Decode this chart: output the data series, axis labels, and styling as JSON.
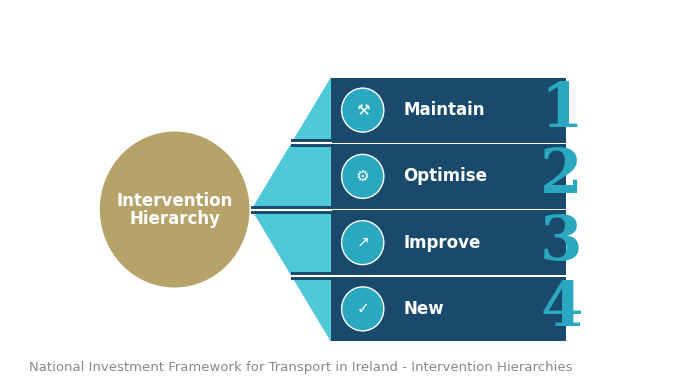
{
  "title": "National Investment Framework for Transport in Ireland - Intervention Hierarchies",
  "circle_text_line1": "Intervention",
  "circle_text_line2": "Hierarchy",
  "circle_color": "#b5a36a",
  "circle_text_color": "#ffffff",
  "dark_blue": "#1a4a6b",
  "teal_blue": "#29a8c0",
  "light_teal": "#4fc8d8",
  "number_color": "#29a8c0",
  "rows": [
    "Maintain",
    "Optimise",
    "Improve",
    "New"
  ],
  "numbers": [
    "1",
    "2",
    "3",
    "4"
  ],
  "bg_color": "#ffffff",
  "title_color": "#888888",
  "title_fontsize": 9.5,
  "row_text_color": "#ffffff",
  "row_fontsize": 12,
  "icon_symbols": [
    "⚒",
    "⚙",
    "↗",
    "✓"
  ]
}
